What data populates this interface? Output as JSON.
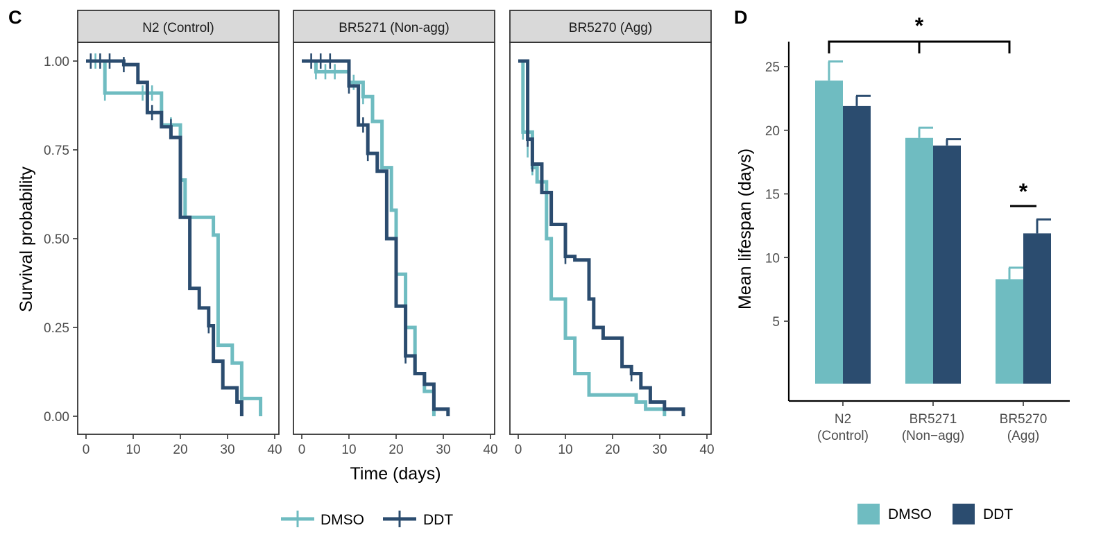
{
  "colors": {
    "DMSO": "#6fbcc1",
    "DDT": "#2b4c6f",
    "strip_bg": "#d9d9d9"
  },
  "panel_c": {
    "letter": "C",
    "ylabel": "Survival probability",
    "xlabel": "Time (days)",
    "legend": [
      "DMSO",
      "DDT"
    ],
    "y_ticks": [
      "0.00",
      "0.25",
      "0.50",
      "0.75",
      "1.00"
    ],
    "x_ticks": [
      "0",
      "10",
      "20",
      "30",
      "40"
    ]
  },
  "panel_d": {
    "letter": "D",
    "ylabel": "Mean lifespan (days)",
    "y_ticks": [
      "5",
      "10",
      "15",
      "20",
      "25"
    ],
    "categories": [
      [
        "N2",
        "(Control)"
      ],
      [
        "BR5271",
        "(Non−agg)"
      ],
      [
        "BR5270",
        "(Agg)"
      ]
    ],
    "legend": [
      "DMSO",
      "DDT"
    ],
    "significance": [
      "*",
      "*"
    ]
  },
  "chart_data": [
    {
      "type": "line",
      "subtype": "kaplan-meier",
      "facet": "N2 (Control)",
      "xlim": [
        0,
        40
      ],
      "ylim": [
        0,
        1
      ],
      "series": [
        {
          "name": "DMSO",
          "steps": [
            [
              0,
              1
            ],
            [
              4,
              0.91
            ],
            [
              16,
              0.82
            ],
            [
              20,
              0.665
            ],
            [
              21,
              0.56
            ],
            [
              26,
              0.56
            ],
            [
              27,
              0.51
            ],
            [
              28,
              0.2
            ],
            [
              31,
              0.15
            ],
            [
              33,
              0.05
            ],
            [
              37,
              0
            ]
          ],
          "censored": [
            [
              2,
              1
            ],
            [
              4,
              0.91
            ],
            [
              12,
              0.91
            ],
            [
              14,
              0.91
            ],
            [
              18,
              0.82
            ]
          ]
        },
        {
          "name": "DDT",
          "steps": [
            [
              0,
              1
            ],
            [
              8,
              0.99
            ],
            [
              11,
              0.94
            ],
            [
              13,
              0.855
            ],
            [
              16,
              0.815
            ],
            [
              18,
              0.785
            ],
            [
              20,
              0.56
            ],
            [
              22,
              0.36
            ],
            [
              24,
              0.305
            ],
            [
              26,
              0.255
            ],
            [
              27,
              0.155
            ],
            [
              29,
              0.08
            ],
            [
              32,
              0.04
            ],
            [
              33,
              0
            ]
          ],
          "censored": [
            [
              1,
              1
            ],
            [
              3,
              1
            ],
            [
              5,
              1
            ],
            [
              8,
              0.99
            ],
            [
              14,
              0.855
            ],
            [
              18,
              0.815
            ],
            [
              26,
              0.255
            ]
          ]
        }
      ]
    },
    {
      "type": "line",
      "subtype": "kaplan-meier",
      "facet": "BR5271 (Non-agg)",
      "xlim": [
        0,
        40
      ],
      "ylim": [
        0,
        1
      ],
      "series": [
        {
          "name": "DMSO",
          "steps": [
            [
              0,
              1
            ],
            [
              3,
              0.97
            ],
            [
              10,
              0.94
            ],
            [
              13,
              0.9
            ],
            [
              15,
              0.83
            ],
            [
              17,
              0.7
            ],
            [
              19,
              0.58
            ],
            [
              20,
              0.4
            ],
            [
              22,
              0.25
            ],
            [
              24,
              0.12
            ],
            [
              26,
              0.07
            ],
            [
              28,
              0
            ]
          ],
          "censored": [
            [
              3,
              0.97
            ],
            [
              5,
              0.97
            ],
            [
              7,
              0.97
            ],
            [
              11,
              0.94
            ],
            [
              13,
              0.9
            ],
            [
              20,
              0.4
            ],
            [
              22,
              0.25
            ]
          ]
        },
        {
          "name": "DDT",
          "steps": [
            [
              0,
              1
            ],
            [
              10,
              0.93
            ],
            [
              12,
              0.82
            ],
            [
              14,
              0.74
            ],
            [
              16,
              0.69
            ],
            [
              18,
              0.5
            ],
            [
              20,
              0.31
            ],
            [
              22,
              0.17
            ],
            [
              24,
              0.12
            ],
            [
              26,
              0.09
            ],
            [
              28,
              0.02
            ],
            [
              31,
              0
            ]
          ],
          "censored": [
            [
              2,
              1
            ],
            [
              4,
              1
            ],
            [
              6,
              1
            ],
            [
              10,
              0.93
            ],
            [
              13,
              0.82
            ],
            [
              14,
              0.74
            ],
            [
              22,
              0.17
            ]
          ]
        }
      ]
    },
    {
      "type": "line",
      "subtype": "kaplan-meier",
      "facet": "BR5270 (Agg)",
      "xlim": [
        0,
        40
      ],
      "ylim": [
        0,
        1
      ],
      "series": [
        {
          "name": "DMSO",
          "steps": [
            [
              0,
              1
            ],
            [
              1,
              0.8
            ],
            [
              3,
              0.7
            ],
            [
              4,
              0.66
            ],
            [
              6,
              0.5
            ],
            [
              7,
              0.33
            ],
            [
              10,
              0.22
            ],
            [
              12,
              0.12
            ],
            [
              15,
              0.06
            ],
            [
              25,
              0.04
            ],
            [
              27,
              0.02
            ],
            [
              31,
              0
            ]
          ],
          "censored": [
            [
              1,
              0.8
            ],
            [
              2,
              0.75
            ],
            [
              3,
              0.7
            ]
          ]
        },
        {
          "name": "DDT",
          "steps": [
            [
              0,
              1
            ],
            [
              2,
              0.78
            ],
            [
              3,
              0.71
            ],
            [
              5,
              0.63
            ],
            [
              7,
              0.54
            ],
            [
              10,
              0.45
            ],
            [
              12,
              0.44
            ],
            [
              15,
              0.33
            ],
            [
              16,
              0.25
            ],
            [
              18,
              0.22
            ],
            [
              22,
              0.14
            ],
            [
              24,
              0.12
            ],
            [
              26,
              0.08
            ],
            [
              28,
              0.04
            ],
            [
              31,
              0.02
            ],
            [
              35,
              0
            ]
          ],
          "censored": [
            [
              2,
              0.78
            ],
            [
              3,
              0.71
            ],
            [
              5,
              0.67
            ],
            [
              10,
              0.45
            ],
            [
              24,
              0.12
            ]
          ]
        }
      ]
    },
    {
      "type": "bar",
      "title": "",
      "categories": [
        "N2 (Control)",
        "BR5271 (Non-agg)",
        "BR5270 (Agg)"
      ],
      "ylabel": "Mean lifespan (days)",
      "ylim": [
        0,
        28
      ],
      "series": [
        {
          "name": "DMSO",
          "values": [
            23.9,
            19.4,
            8.3
          ],
          "errors": [
            1.5,
            0.8,
            0.9
          ]
        },
        {
          "name": "DDT",
          "values": [
            21.9,
            18.8,
            11.9
          ],
          "errors": [
            0.8,
            0.5,
            1.1
          ]
        }
      ]
    }
  ]
}
